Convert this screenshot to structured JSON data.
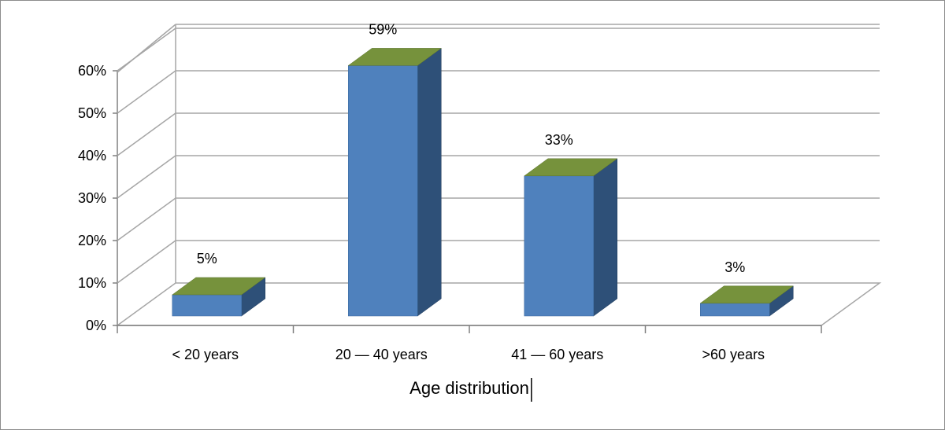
{
  "chart_data": {
    "type": "bar",
    "style": "3d-column",
    "categories": [
      "< 20 years",
      "20 — 40 years",
      "41 — 60 years",
      ">60 years"
    ],
    "values": [
      5,
      59,
      33,
      3
    ],
    "value_labels": [
      "5%",
      "59%",
      "33%",
      "3%"
    ],
    "title": "",
    "xlabel": "Age distribution",
    "ylabel": "",
    "ylim": [
      0,
      60
    ],
    "yticks": [
      "0%",
      "10%",
      "20%",
      "30%",
      "40%",
      "50%",
      "60%"
    ],
    "grid": true,
    "legend": "none",
    "colors": {
      "bar_front": "#4f81bd",
      "bar_side": "#2e5078",
      "bar_top": "#76923c",
      "grid": "#a6a6a6",
      "axis": "#808080"
    }
  }
}
